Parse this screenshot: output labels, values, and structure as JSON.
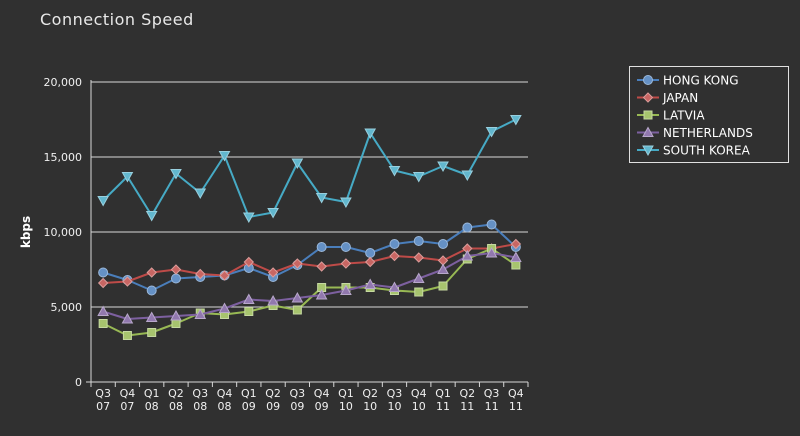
{
  "chart_data": {
    "type": "line",
    "title": "Connection Speed",
    "xlabel": "",
    "ylabel": "kbps",
    "ylim": [
      0,
      20000
    ],
    "yticks": [
      0,
      5000,
      10000,
      15000,
      20000
    ],
    "ytick_labels": [
      "0",
      "5,000",
      "10,000",
      "15,000",
      "20,000"
    ],
    "grid": "horizontal",
    "legend_position": "top-right",
    "categories": [
      [
        "Q3",
        "07"
      ],
      [
        "Q4",
        "07"
      ],
      [
        "Q1",
        "08"
      ],
      [
        "Q2",
        "08"
      ],
      [
        "Q3",
        "08"
      ],
      [
        "Q4",
        "08"
      ],
      [
        "Q1",
        "09"
      ],
      [
        "Q2",
        "09"
      ],
      [
        "Q3",
        "09"
      ],
      [
        "Q4",
        "09"
      ],
      [
        "Q1",
        "10"
      ],
      [
        "Q2",
        "10"
      ],
      [
        "Q3",
        "10"
      ],
      [
        "Q4",
        "10"
      ],
      [
        "Q1",
        "11"
      ],
      [
        "Q2",
        "11"
      ],
      [
        "Q3",
        "11"
      ],
      [
        "Q4",
        "11"
      ]
    ],
    "series": [
      {
        "name": "HONG KONG",
        "color": "#4a7ebb",
        "marker": "circle",
        "values": [
          7300,
          6800,
          6100,
          6900,
          7000,
          7100,
          7600,
          7000,
          7800,
          9000,
          9000,
          8600,
          9200,
          9400,
          9200,
          10300,
          10500,
          9000
        ]
      },
      {
        "name": "JAPAN",
        "color": "#be4b48",
        "marker": "diamond",
        "values": [
          6600,
          6700,
          7300,
          7500,
          7200,
          7100,
          8000,
          7300,
          7900,
          7700,
          7900,
          8000,
          8400,
          8300,
          8100,
          8900,
          8900,
          9200
        ]
      },
      {
        "name": "LATVIA",
        "color": "#98b954",
        "marker": "square",
        "values": [
          3900,
          3100,
          3300,
          3900,
          4600,
          4500,
          4700,
          5100,
          4800,
          6300,
          6300,
          6300,
          6100,
          6000,
          6400,
          8200,
          8900,
          7800
        ]
      },
      {
        "name": "NETHERLANDS",
        "color": "#7d60a0",
        "marker": "triangle-up",
        "values": [
          4700,
          4200,
          4300,
          4400,
          4500,
          4900,
          5500,
          5400,
          5600,
          5800,
          6100,
          6500,
          6300,
          6900,
          7500,
          8400,
          8600,
          8300
        ]
      },
      {
        "name": "SOUTH KOREA",
        "color": "#46aac5",
        "marker": "triangle-down",
        "values": [
          12100,
          13700,
          11100,
          13900,
          12600,
          15100,
          11000,
          11300,
          14600,
          12300,
          12000,
          16600,
          14100,
          13700,
          14400,
          13800,
          16700,
          17500
        ]
      }
    ]
  }
}
